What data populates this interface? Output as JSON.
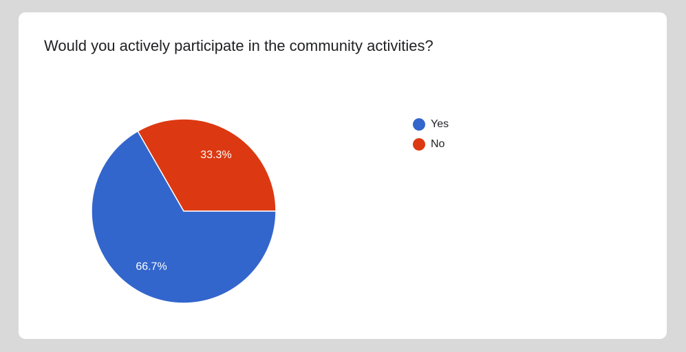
{
  "chart_data": {
    "type": "pie",
    "title": "Would you actively participate in the community activities?",
    "categories": [
      "Yes",
      "No"
    ],
    "values": [
      66.7,
      33.3
    ],
    "value_labels": [
      "66.7%",
      "33.3%"
    ],
    "colors": [
      "#3366cc",
      "#dc3912"
    ]
  }
}
